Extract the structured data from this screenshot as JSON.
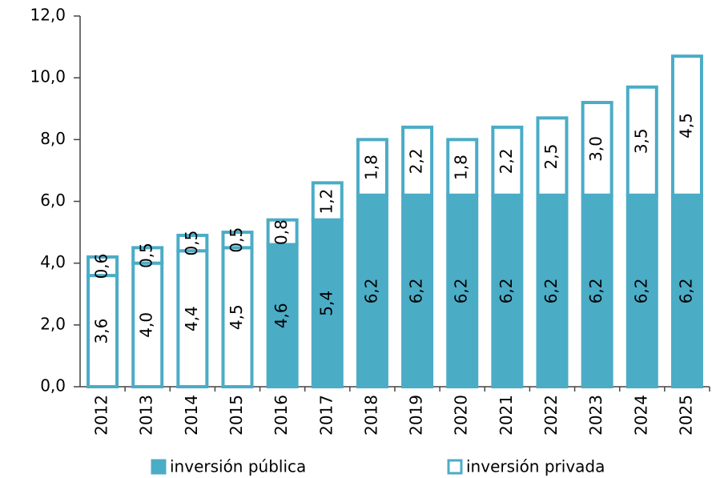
{
  "chart_data": {
    "type": "stacked_bar",
    "categories": [
      "2012",
      "2013",
      "2014",
      "2015",
      "2016",
      "2017",
      "2018",
      "2019",
      "2020",
      "2021",
      "2022",
      "2023",
      "2024",
      "2025"
    ],
    "series": [
      {
        "name": "inversión pública",
        "color": "#4bacc6",
        "colors": [
          "#ffffff",
          "#ffffff",
          "#ffffff",
          "#ffffff",
          "#4bacc6",
          "#4bacc6",
          "#4bacc6",
          "#4bacc6",
          "#4bacc6",
          "#4bacc6",
          "#4bacc6",
          "#4bacc6",
          "#4bacc6",
          "#4bacc6"
        ],
        "values": [
          3.6,
          4.0,
          4.4,
          4.5,
          4.6,
          5.4,
          6.2,
          6.2,
          6.2,
          6.2,
          6.2,
          6.2,
          6.2,
          6.2
        ],
        "value_labels": [
          "3,6",
          "4,0",
          "4,4",
          "4,5",
          "4,6",
          "5,4",
          "6,2",
          "6,2",
          "6,2",
          "6,2",
          "6,2",
          "6,2",
          "6,2",
          "6,2"
        ]
      },
      {
        "name": "inversión privada",
        "color": "#ffffff",
        "values": [
          0.6,
          0.5,
          0.5,
          0.5,
          0.8,
          1.2,
          1.8,
          2.2,
          1.8,
          2.2,
          2.5,
          3.0,
          3.5,
          4.5
        ],
        "value_labels": [
          "0,6",
          "0,5",
          "0,5",
          "0,5",
          "0,8",
          "1,2",
          "1,8",
          "2,2",
          "1,8",
          "2,2",
          "2,5",
          "3,0",
          "3,5",
          "4,5"
        ]
      }
    ],
    "outline": "#4bacc6",
    "ylim": [
      0,
      12
    ],
    "yticks": [
      {
        "value": 0,
        "label": "0,0"
      },
      {
        "value": 2,
        "label": "2,0"
      },
      {
        "value": 4,
        "label": "4,0"
      },
      {
        "value": 6,
        "label": "6,0"
      },
      {
        "value": 8,
        "label": "8,0"
      },
      {
        "value": 10,
        "label": "10,0"
      },
      {
        "value": 12,
        "label": "12,0"
      }
    ]
  }
}
